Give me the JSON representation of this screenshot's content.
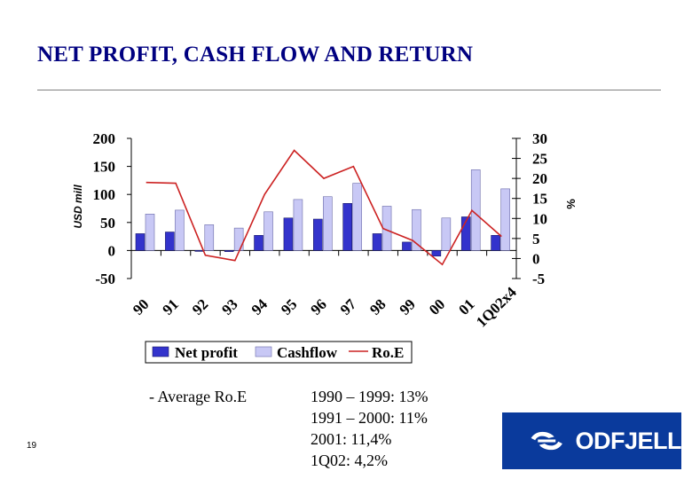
{
  "slide": {
    "title": "NET PROFIT, CASH FLOW AND RETURN",
    "page_number": "19",
    "average_label": "- Average Ro.E",
    "average_roe": [
      "1990 – 1999: 13%",
      "1991 – 2000: 11%",
      "2001: 11,4%",
      "1Q02:  4,2%"
    ]
  },
  "logo": {
    "text": "ODFJELL",
    "icon": "odfjell-logo-icon",
    "color": "#0a3a9c"
  },
  "colors": {
    "net_profit": "#3333cc",
    "cashflow": "#c8c8f5",
    "roe": "#cc2222"
  },
  "chart_data": {
    "type": "bar",
    "categories": [
      "90",
      "91",
      "92",
      "93",
      "94",
      "95",
      "96",
      "97",
      "98",
      "99",
      "00",
      "01",
      "1Q02x4"
    ],
    "series": [
      {
        "name": "Net profit",
        "type": "bar",
        "axis": "left",
        "values": [
          30,
          33,
          0,
          -2,
          27,
          58,
          56,
          84,
          30,
          15,
          -10,
          60,
          27
        ]
      },
      {
        "name": "Cashflow",
        "type": "bar",
        "axis": "left",
        "values": [
          65,
          72,
          46,
          40,
          69,
          91,
          96,
          120,
          79,
          73,
          58,
          144,
          110
        ]
      },
      {
        "name": "Ro.E",
        "type": "line",
        "axis": "right",
        "values": [
          19,
          18.8,
          0.8,
          -0.5,
          16,
          27,
          20,
          23,
          7.5,
          4.5,
          -1.5,
          12,
          5.5
        ]
      }
    ],
    "ylabel": "USD mill",
    "y2label": "%",
    "ylim": [
      -50,
      200
    ],
    "y2lim": [
      -5,
      30
    ],
    "yticks": [
      -50,
      0,
      50,
      100,
      150,
      200
    ],
    "y2ticks": [
      -5,
      0,
      5,
      10,
      15,
      20,
      25,
      30
    ],
    "legend": "bottom",
    "grid": false
  }
}
